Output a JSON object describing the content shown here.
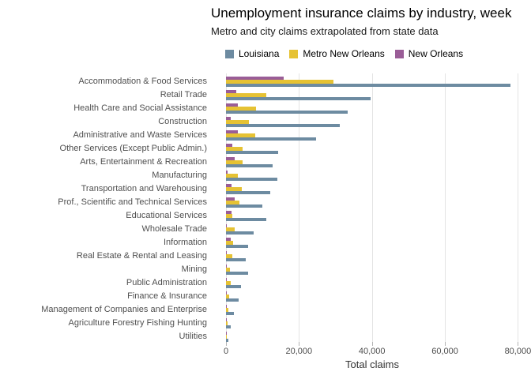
{
  "title": "Unemployment insurance claims by industry, week",
  "subtitle": "Metro and city claims extrapolated from state data",
  "colors": {
    "louisiana": "#6d8ba1",
    "metro_new_orleans": "#e6c233",
    "new_orleans": "#9a5d97",
    "gridline": "#e4e4e4",
    "tick": "#b3b3b3",
    "axis_text": "#4d4d4d"
  },
  "chart_data": {
    "type": "bar",
    "orientation": "horizontal",
    "title": "Unemployment insurance claims by industry, week",
    "subtitle": "Metro and city claims extrapolated from state data",
    "xlabel": "Total claims",
    "ylabel": "",
    "xlim": [
      0,
      83500
    ],
    "x_ticks": [
      {
        "value": 0,
        "label": "0"
      },
      {
        "value": 20000,
        "label": "20,000"
      },
      {
        "value": 40000,
        "label": "40,000"
      },
      {
        "value": 60000,
        "label": "60,000"
      },
      {
        "value": 80000,
        "label": "80,000"
      }
    ],
    "grid": true,
    "legend_position": "top",
    "categories": [
      "Accommodation & Food Services",
      "Retail Trade",
      "Health Care and Social Assistance",
      "Construction",
      "Administrative and Waste Services",
      "Other Services (Except Public Admin.)",
      "Arts, Entertainment & Recreation",
      "Manufacturing",
      "Transportation and Warehousing",
      "Prof., Scientific and Technical Services",
      "Educational Services",
      "Wholesale Trade",
      "Information",
      "Real Estate & Rental and Leasing",
      "Mining",
      "Public Administration",
      "Finance & Insurance",
      "Management of Companies and Enterprise",
      "Agriculture Forestry Fishing Hunting",
      "Utilities"
    ],
    "series": [
      {
        "name": "Louisiana",
        "color": "#6d8ba1",
        "values": [
          78000,
          39700,
          33300,
          31200,
          24600,
          14200,
          12700,
          14100,
          12100,
          10000,
          11000,
          7600,
          6100,
          5400,
          6000,
          4100,
          3500,
          2200,
          1400,
          700
        ]
      },
      {
        "name": "Metro New Orleans",
        "color": "#e6c233",
        "values": [
          29500,
          11000,
          8200,
          6200,
          8000,
          4600,
          4600,
          3250,
          4300,
          3600,
          1800,
          2300,
          1900,
          1750,
          1100,
          1250,
          900,
          750,
          400,
          100
        ]
      },
      {
        "name": "New Orleans",
        "color": "#9a5d97",
        "values": [
          15800,
          2750,
          3250,
          1300,
          3250,
          1800,
          2400,
          450,
          1500,
          2450,
          1600,
          250,
          1250,
          300,
          200,
          250,
          150,
          150,
          50,
          30
        ]
      }
    ]
  }
}
